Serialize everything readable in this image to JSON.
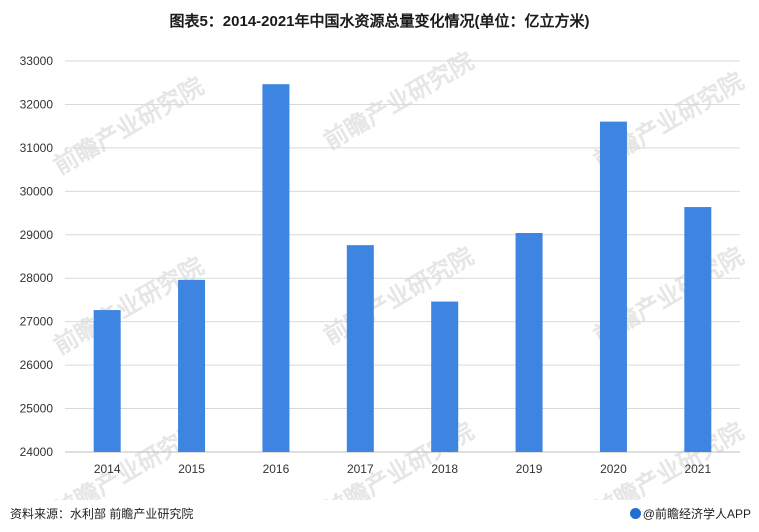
{
  "title": "图表5：2014-2021年中国水资源总量变化情况(单位：亿立方米)",
  "source": "资料来源：水利部 前瞻产业研究院",
  "brand": "@前瞻经济学人APP",
  "watermark": "前瞻产业研究院",
  "colors": {
    "bar": "#3d85e0",
    "grid": "#d9d9d9",
    "axis": "#bfbfbf"
  },
  "chart_data": {
    "type": "bar",
    "categories": [
      "2014",
      "2015",
      "2016",
      "2017",
      "2018",
      "2019",
      "2020",
      "2021"
    ],
    "values": [
      27267,
      27963,
      32466,
      28761,
      27463,
      29041,
      31605,
      29638
    ],
    "ylim": [
      24000,
      33000
    ],
    "yticks": [
      "24000",
      "25000",
      "26000",
      "27000",
      "28000",
      "29000",
      "30000",
      "31000",
      "32000",
      "33000"
    ],
    "grid": true
  }
}
